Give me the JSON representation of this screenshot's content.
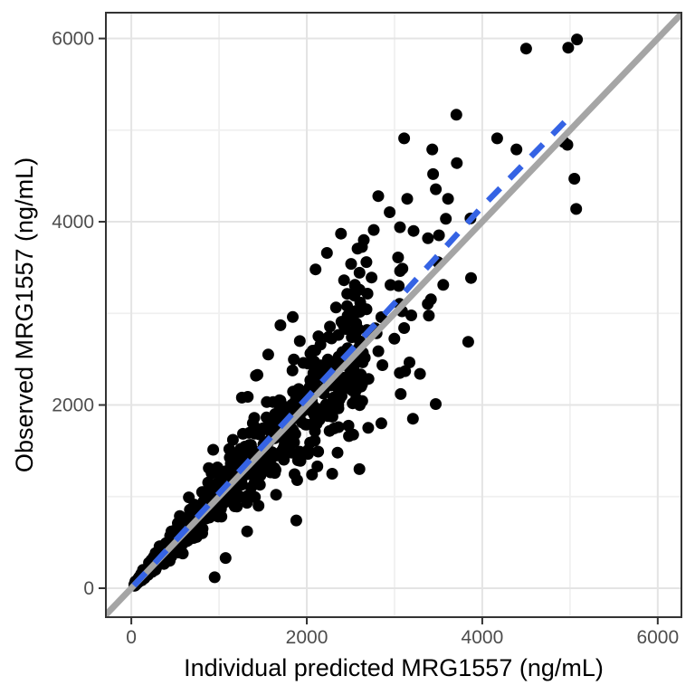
{
  "chart_data": {
    "type": "scatter",
    "title": "",
    "xlabel": "Individual predicted MRG1557 (ng/mL)",
    "ylabel": "Observed MRG1557 (ng/mL)",
    "xlim": [
      -290,
      6270
    ],
    "ylim": [
      -316,
      6282
    ],
    "xticks": [
      0,
      2000,
      4000,
      6000
    ],
    "yticks": [
      0,
      2000,
      4000,
      6000
    ],
    "x_minor_ticks": [
      1000,
      3000,
      5000
    ],
    "y_minor_ticks": [
      1000,
      3000,
      5000
    ],
    "grid": true,
    "legend": "none",
    "style": {
      "background": "#ffffff",
      "panel_background": "#ffffff",
      "panel_border_color": "#333333",
      "grid_major_color": "#e4e4e4",
      "grid_minor_color": "#f0f0f0",
      "tick_mark_color": "#333333",
      "tick_label_color": "#4d4d4d",
      "point_color": "#000000",
      "point_radius": 6.5,
      "identity_color": "#a5a5a5",
      "identity_width": 7,
      "smooth_color": "#3563e4",
      "smooth_width": 6.5,
      "smooth_dash": "19 15"
    },
    "identity_line": {
      "x1": -290,
      "y1": -290,
      "x2": 6270,
      "y2": 6270
    },
    "smooth_line": {
      "points": [
        [
          30,
          30
        ],
        [
          1000,
          1035
        ],
        [
          2000,
          2075
        ],
        [
          3000,
          3110
        ],
        [
          4000,
          4165
        ],
        [
          4960,
          5110
        ]
      ]
    },
    "outlier_points": [
      [
        950,
        120
      ],
      [
        1075,
        330
      ],
      [
        1320,
        620
      ],
      [
        1880,
        740
      ],
      [
        2600,
        1300
      ],
      [
        1650,
        1020
      ],
      [
        1890,
        1180
      ],
      [
        2120,
        1330
      ],
      [
        2350,
        1480
      ],
      [
        1450,
        900
      ],
      [
        2480,
        1660
      ],
      [
        2700,
        1750
      ],
      [
        2850,
        1800
      ],
      [
        3210,
        1850
      ],
      [
        3470,
        2010
      ],
      [
        3840,
        2690
      ],
      [
        3290,
        2340
      ],
      [
        3060,
        2350
      ],
      [
        3070,
        2120
      ],
      [
        3110,
        2840
      ],
      [
        2290,
        1250
      ],
      [
        2060,
        1240
      ],
      [
        5050,
        4470
      ],
      [
        5070,
        4140
      ],
      [
        4970,
        4840
      ],
      [
        4930,
        4870
      ],
      [
        1560,
        2550
      ],
      [
        1700,
        2870
      ],
      [
        1840,
        2960
      ],
      [
        2100,
        3480
      ],
      [
        2230,
        3660
      ],
      [
        2390,
        3870
      ],
      [
        1420,
        2320
      ],
      [
        1260,
        2080
      ],
      [
        2460,
        3080
      ],
      [
        2550,
        3300
      ],
      [
        2815,
        4280
      ],
      [
        3110,
        4910
      ],
      [
        3430,
        4790
      ],
      [
        3710,
        4640
      ],
      [
        3440,
        4520
      ],
      [
        3610,
        4250
      ],
      [
        3145,
        4250
      ],
      [
        4500,
        5890
      ],
      [
        4980,
        5900
      ],
      [
        5080,
        5990
      ],
      [
        4170,
        4910
      ],
      [
        4390,
        4790
      ],
      [
        2763,
        3910
      ],
      [
        3062,
        3940
      ],
      [
        3217,
        3900
      ],
      [
        3381,
        3820
      ],
      [
        2650,
        3800
      ],
      [
        2629,
        3725
      ],
      [
        2505,
        3540
      ],
      [
        2680,
        3560
      ],
      [
        3041,
        3610
      ]
    ],
    "cloud": {
      "n": 880,
      "seed": 20177,
      "x_main_min": 35,
      "x_main_span": 2570,
      "x_main_pow": 1.7,
      "tail_frac": 0.06,
      "x_tail_min": 2600,
      "x_tail_span": 1350,
      "x_tail_pow": 2.0,
      "ratio_sigma": 0.15,
      "ratio_min": 0.55,
      "ratio_max": 1.62,
      "y_max": 6040
    }
  }
}
